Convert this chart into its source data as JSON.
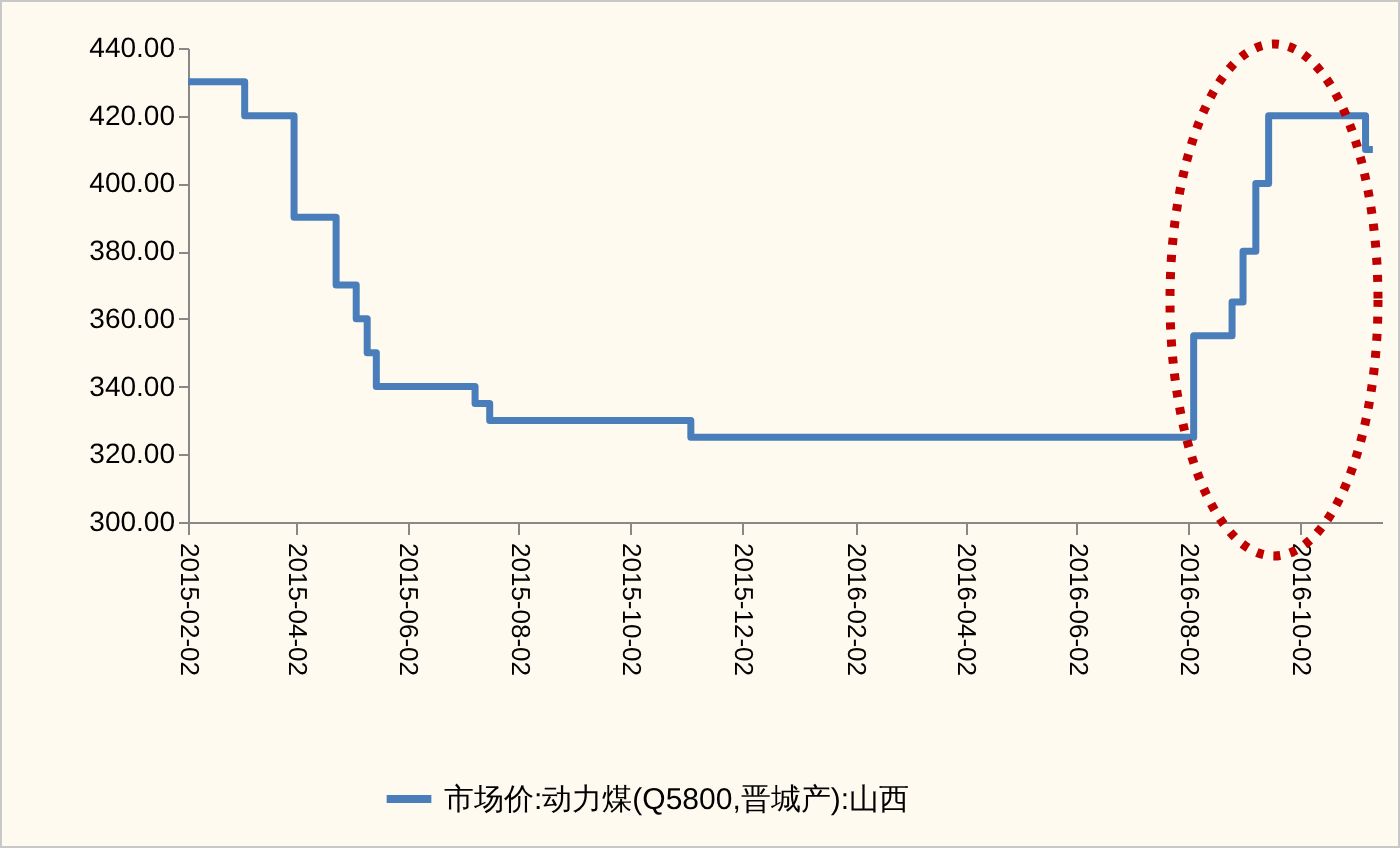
{
  "chart_data": {
    "type": "step",
    "x": [
      "2015-02-02",
      "2015-03-05",
      "2015-04-01",
      "2015-04-24",
      "2015-05-05",
      "2015-05-11",
      "2015-05-16",
      "2015-07-09",
      "2015-07-17",
      "2015-11-04",
      "2016-08-05",
      "2016-08-26",
      "2016-09-01",
      "2016-09-08",
      "2016-09-15",
      "2016-11-07",
      "2016-11-11"
    ],
    "series": [
      {
        "name": "市场价:动力煤(Q5800,晋城产):山西",
        "color": "#4a7ebb",
        "values": [
          430,
          420,
          390,
          370,
          360,
          350,
          340,
          335,
          330,
          325,
          355,
          365,
          380,
          400,
          420,
          410,
          410
        ]
      }
    ],
    "xlim": [
      "2015-02-02",
      "2016-11-16"
    ],
    "xticks": [
      "2015-02-02",
      "2015-04-02",
      "2015-06-02",
      "2015-08-02",
      "2015-10-02",
      "2015-12-02",
      "2016-02-02",
      "2016-04-02",
      "2016-06-02",
      "2016-08-02",
      "2016-10-02"
    ],
    "ylim": [
      300,
      440
    ],
    "yticks": [
      {
        "value": 300,
        "label": "300.00"
      },
      {
        "value": 320,
        "label": "320.00"
      },
      {
        "value": 340,
        "label": "340.00"
      },
      {
        "value": 360,
        "label": "360.00"
      },
      {
        "value": 380,
        "label": "380.00"
      },
      {
        "value": 400,
        "label": "400.00"
      },
      {
        "value": 420,
        "label": "420.00"
      },
      {
        "value": 440,
        "label": "440.00"
      }
    ],
    "grid": false,
    "legend": "bottom",
    "line_style": "solid",
    "marker": "none"
  }
}
